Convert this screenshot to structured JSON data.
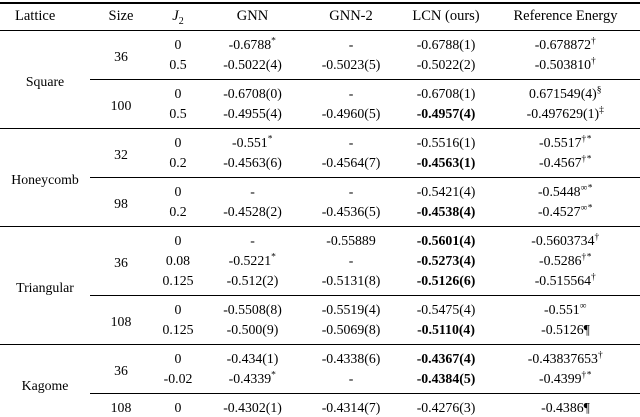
{
  "table": {
    "headers": [
      {
        "key": "lattice",
        "label": "Lattice"
      },
      {
        "key": "size",
        "label": "Size"
      },
      {
        "key": "j2",
        "label": "J",
        "sub": "2",
        "italic": true
      },
      {
        "key": "gnn",
        "label": "GNN"
      },
      {
        "key": "gnn2",
        "label": "GNN-2"
      },
      {
        "key": "lcn",
        "label": "LCN (ours)"
      },
      {
        "key": "ref",
        "label": "Reference Energy"
      }
    ],
    "groups": [
      {
        "lattice": "Square",
        "subgroups": [
          {
            "size": "36",
            "rows": [
              {
                "j2": "0",
                "gnn": {
                  "t": "-0.6788",
                  "s": "*"
                },
                "gnn2": {
                  "t": "-"
                },
                "lcn": {
                  "t": "-0.6788(1)"
                },
                "ref": {
                  "t": "-0.678872",
                  "s": "†"
                }
              },
              {
                "j2": "0.5",
                "gnn": {
                  "t": "-0.5022(4)"
                },
                "gnn2": {
                  "t": "-0.5023(5)"
                },
                "lcn": {
                  "t": "-0.5022(2)"
                },
                "ref": {
                  "t": "-0.503810",
                  "s": "†"
                }
              }
            ]
          },
          {
            "size": "100",
            "rows": [
              {
                "j2": "0",
                "gnn": {
                  "t": "-0.6708(0)"
                },
                "gnn2": {
                  "t": "-"
                },
                "lcn": {
                  "t": "-0.6708(1)"
                },
                "ref": {
                  "t": "0.671549(4)",
                  "s": "§"
                }
              },
              {
                "j2": "0.5",
                "gnn": {
                  "t": "-0.4955(4)"
                },
                "gnn2": {
                  "t": "-0.4960(5)"
                },
                "lcn": {
                  "t": "-0.4957(4)",
                  "b": true
                },
                "ref": {
                  "t": "-0.497629(1)",
                  "s": "‡"
                }
              }
            ]
          }
        ]
      },
      {
        "lattice": "Honeycomb",
        "subgroups": [
          {
            "size": "32",
            "rows": [
              {
                "j2": "0",
                "gnn": {
                  "t": "-0.551",
                  "s": "*"
                },
                "gnn2": {
                  "t": "-"
                },
                "lcn": {
                  "t": "-0.5516(1)"
                },
                "ref": {
                  "t": "-0.5517",
                  "s": "†*"
                }
              },
              {
                "j2": "0.2",
                "gnn": {
                  "t": "-0.4563(6)"
                },
                "gnn2": {
                  "t": "-0.4564(7)"
                },
                "lcn": {
                  "t": "-0.4563(1)",
                  "b": true
                },
                "ref": {
                  "t": "-0.4567",
                  "s": "†*"
                }
              }
            ]
          },
          {
            "size": "98",
            "rows": [
              {
                "j2": "0",
                "gnn": {
                  "t": "-"
                },
                "gnn2": {
                  "t": "-"
                },
                "lcn": {
                  "t": "-0.5421(4)"
                },
                "ref": {
                  "t": "-0.5448",
                  "s": "∞*"
                }
              },
              {
                "j2": "0.2",
                "gnn": {
                  "t": "-0.4528(2)"
                },
                "gnn2": {
                  "t": "-0.4536(5)"
                },
                "lcn": {
                  "t": "-0.4538(4)",
                  "b": true
                },
                "ref": {
                  "t": "-0.4527",
                  "s": "∞*"
                }
              }
            ]
          }
        ]
      },
      {
        "lattice": "Triangular",
        "subgroups": [
          {
            "size": "36",
            "rows": [
              {
                "j2": "0",
                "gnn": {
                  "t": "-"
                },
                "gnn2": {
                  "t": "-0.55889"
                },
                "lcn": {
                  "t": "-0.5601(4)",
                  "b": true
                },
                "ref": {
                  "t": "-0.5603734",
                  "s": "†"
                }
              },
              {
                "j2": "0.08",
                "gnn": {
                  "t": "-0.5221",
                  "s": "*"
                },
                "gnn2": {
                  "t": "-"
                },
                "lcn": {
                  "t": "-0.5273(4)",
                  "b": true
                },
                "ref": {
                  "t": "-0.5286",
                  "s": "†*"
                }
              },
              {
                "j2": "0.125",
                "gnn": {
                  "t": "-0.512(2)"
                },
                "gnn2": {
                  "t": "-0.5131(8)"
                },
                "lcn": {
                  "t": "-0.5126(6)",
                  "b": true
                },
                "ref": {
                  "t": "-0.515564",
                  "s": "†"
                }
              }
            ]
          },
          {
            "size": "108",
            "rows": [
              {
                "j2": "0",
                "gnn": {
                  "t": "-0.5508(8)"
                },
                "gnn2": {
                  "t": "-0.5519(4)"
                },
                "lcn": {
                  "t": "-0.5475(4)"
                },
                "ref": {
                  "t": "-0.551",
                  "s": "∞"
                }
              },
              {
                "j2": "0.125",
                "gnn": {
                  "t": "-0.500(9)"
                },
                "gnn2": {
                  "t": "-0.5069(8)"
                },
                "lcn": {
                  "t": "-0.5110(4)",
                  "b": true
                },
                "ref": {
                  "t": "-0.5126¶"
                }
              }
            ]
          }
        ]
      },
      {
        "lattice": "Kagome",
        "subgroups": [
          {
            "size": "36",
            "rows": [
              {
                "j2": "0",
                "gnn": {
                  "t": "-0.434(1)"
                },
                "gnn2": {
                  "t": "-0.4338(6)"
                },
                "lcn": {
                  "t": "-0.4367(4)",
                  "b": true
                },
                "ref": {
                  "t": "-0.43837653",
                  "s": "†"
                }
              },
              {
                "j2": "-0.02",
                "gnn": {
                  "t": "-0.4339",
                  "s": "*"
                },
                "gnn2": {
                  "t": "-"
                },
                "lcn": {
                  "t": "-0.4384(5)",
                  "b": true
                },
                "ref": {
                  "t": "-0.4399",
                  "s": "†*"
                }
              }
            ]
          },
          {
            "size": "108",
            "rows": [
              {
                "j2": "0",
                "gnn": {
                  "t": "-0.4302(1)"
                },
                "gnn2": {
                  "t": "-0.4314(7)"
                },
                "lcn": {
                  "t": "-0.4276(3)"
                },
                "ref": {
                  "t": "-0.4386¶"
                }
              }
            ]
          }
        ]
      }
    ]
  }
}
